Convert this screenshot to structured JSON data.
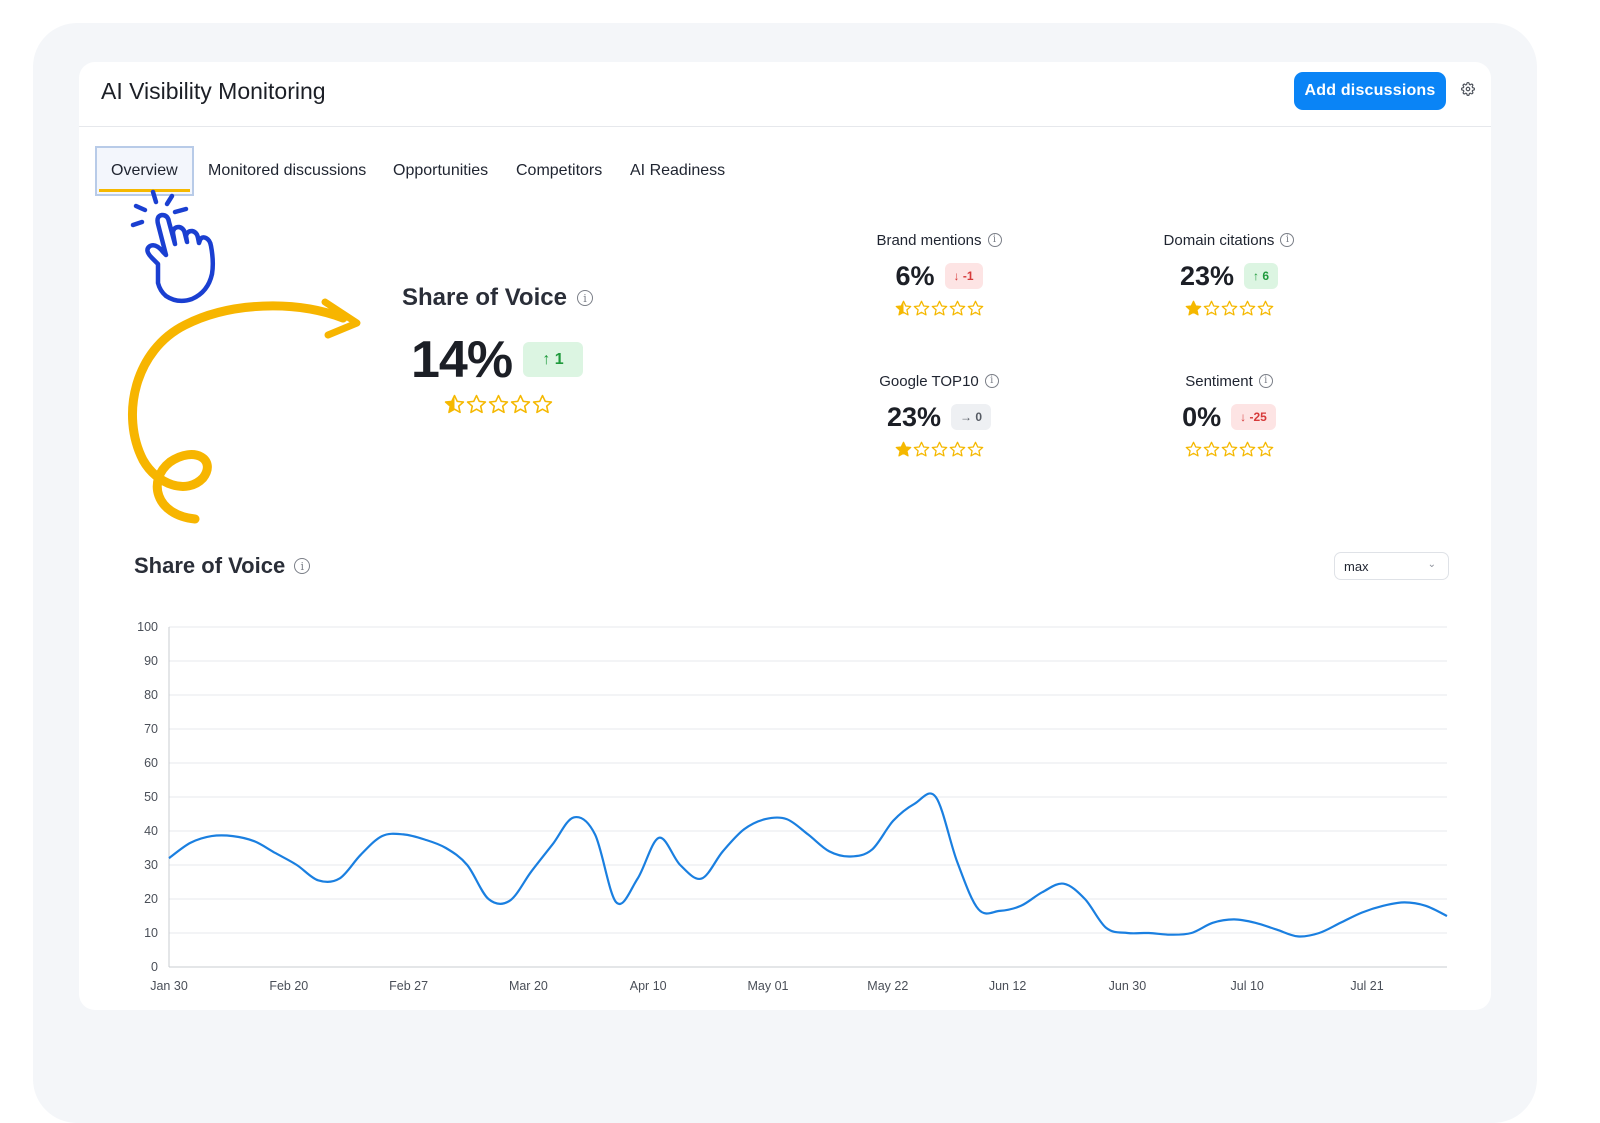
{
  "header": {
    "title": "AI Visibility Monitoring",
    "add_button": "Add discussions",
    "settings_icon": "gear-icon"
  },
  "tabs": [
    {
      "label": "Overview",
      "active": true
    },
    {
      "label": "Monitored discussions",
      "active": false
    },
    {
      "label": "Opportunities",
      "active": false
    },
    {
      "label": "Competitors",
      "active": false
    },
    {
      "label": "AI Readiness",
      "active": false
    }
  ],
  "share_of_voice": {
    "title": "Share of Voice",
    "value": "14%",
    "change": "↑ 1",
    "change_dir": "up",
    "rating": 0.5
  },
  "metrics": [
    {
      "label": "Brand mentions",
      "value": "6%",
      "change": "↓ -1",
      "change_dir": "down",
      "rating": 0.5
    },
    {
      "label": "Domain citations",
      "value": "23%",
      "change": "↑ 6",
      "change_dir": "up",
      "rating": 1
    },
    {
      "label": "Google TOP10",
      "value": "23%",
      "change": "→ 0",
      "change_dir": "flat",
      "rating": 1
    },
    {
      "label": "Sentiment",
      "value": "0%",
      "change": "↓ -25",
      "change_dir": "down",
      "rating": 0
    }
  ],
  "chart_section": {
    "title": "Share of Voice",
    "range_select": "max"
  },
  "colors": {
    "accent": "#0a84f6",
    "star": "#f5b800",
    "up": "#1f9a3c",
    "down": "#d63a3a",
    "line": "#1a7fe0"
  },
  "chart_data": {
    "type": "line",
    "title": "Share of Voice",
    "xlabel": "",
    "ylabel": "",
    "ylim": [
      0,
      100
    ],
    "yticks": [
      0,
      10,
      20,
      30,
      40,
      50,
      60,
      70,
      80,
      90,
      100
    ],
    "x_tick_labels": [
      "Jan 30",
      "Feb 20",
      "Feb 27",
      "Mar 20",
      "Apr 10",
      "May 01",
      "May 22",
      "Jun 12",
      "Jun 30",
      "Jul 10",
      "Jul 21"
    ],
    "grid": true,
    "legend": "none",
    "series": [
      {
        "values": [
          32,
          36.5,
          38.5,
          38.5,
          37,
          33.5,
          30,
          25.5,
          26,
          33,
          38.5,
          39,
          37.5,
          35,
          30,
          20,
          19.5,
          28,
          36,
          44,
          39,
          19,
          26,
          38,
          30,
          26,
          34,
          40.5,
          43.5,
          43.5,
          39,
          34,
          32.5,
          34.5,
          43,
          48,
          50,
          31,
          17,
          16.5,
          18,
          22,
          24.5,
          20,
          11.5,
          10,
          10,
          9.5,
          10,
          13,
          14,
          13,
          11,
          9,
          10,
          13,
          16,
          18,
          19,
          18,
          15
        ]
      }
    ]
  }
}
